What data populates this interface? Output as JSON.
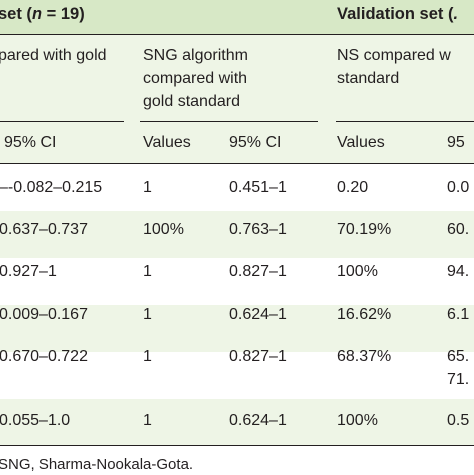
{
  "group_headers": {
    "training_prefix": "set (",
    "training_n": "n",
    "training_suffix": " = 19)",
    "validation_prefix": "Validation set (",
    "validation_cut": "."
  },
  "sub_headers": {
    "ns_training_line1": "pared with gold",
    "sng_line1": "SNG algorithm",
    "sng_line2": "compared with",
    "sng_line3": "gold standard",
    "ns_validation_line1": "NS compared w",
    "ns_validation_line2": "standard"
  },
  "column_headers": {
    "ci_1": "95% CI",
    "values_2": "Values",
    "ci_2": "95% CI",
    "values_3": "Values",
    "ci_3": "95"
  },
  "rows": [
    {
      "ci_1": "–-0.082–0.215",
      "values_2": "1",
      "ci_2": "0.451–1",
      "values_3": "0.20",
      "ci_3": "0.0",
      "ci_3_line2": ""
    },
    {
      "ci_1": "0.637–0.737",
      "values_2": "100%",
      "ci_2": "0.763–1",
      "values_3": "70.19%",
      "ci_3": "60.",
      "ci_3_line2": ""
    },
    {
      "ci_1": "0.927–1",
      "values_2": "1",
      "ci_2": "0.827–1",
      "values_3": "100%",
      "ci_3": "94.",
      "ci_3_line2": ""
    },
    {
      "ci_1": "0.009–0.167",
      "values_2": "1",
      "ci_2": "0.624–1",
      "values_3": "16.62%",
      "ci_3": "6.1",
      "ci_3_line2": ""
    },
    {
      "ci_1": "0.670–0.722",
      "values_2": "1",
      "ci_2": "0.827–1",
      "values_3": "68.37%",
      "ci_3": "65.",
      "ci_3_line2": "71."
    },
    {
      "ci_1": "0.055–1.0",
      "values_2": "1",
      "ci_2": "0.624–1",
      "values_3": "100%",
      "ci_3": "0.5",
      "ci_3_line2": ""
    }
  ],
  "footnote": "SNG, Sharma-Nookala-Gota."
}
